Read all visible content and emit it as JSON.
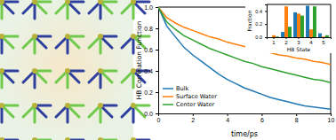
{
  "chart_data": [
    {
      "type": "line",
      "x_label": "time/ps",
      "y_label": "HB Correlation Function",
      "x": [
        0,
        0.5,
        1,
        1.5,
        2,
        2.5,
        3,
        3.5,
        4,
        4.5,
        5,
        5.5,
        6,
        6.5,
        7,
        7.5,
        8,
        8.5,
        9,
        9.5,
        10
      ],
      "series": [
        {
          "name": "Bulk",
          "color": "#1f77b4",
          "values": [
            1.0,
            0.82,
            0.72,
            0.62,
            0.55,
            0.49,
            0.43,
            0.37,
            0.32,
            0.28,
            0.24,
            0.21,
            0.18,
            0.15,
            0.13,
            0.11,
            0.09,
            0.07,
            0.06,
            0.05,
            0.04
          ]
        },
        {
          "name": "Surface Water",
          "color": "#ff7f0e",
          "values": [
            1.0,
            0.9,
            0.85,
            0.81,
            0.78,
            0.75,
            0.72,
            0.7,
            0.67,
            0.65,
            0.63,
            0.61,
            0.59,
            0.57,
            0.55,
            0.54,
            0.52,
            0.51,
            0.49,
            0.48,
            0.46
          ]
        },
        {
          "name": "Center Water",
          "color": "#2ca02c",
          "values": [
            1.0,
            0.86,
            0.79,
            0.73,
            0.69,
            0.65,
            0.61,
            0.58,
            0.55,
            0.52,
            0.49,
            0.47,
            0.44,
            0.42,
            0.4,
            0.38,
            0.36,
            0.34,
            0.32,
            0.31,
            0.29
          ]
        }
      ],
      "xlim": [
        0,
        10
      ],
      "xticks": [
        0,
        2,
        4,
        6,
        8,
        10
      ],
      "ylim": [
        0,
        1.0
      ],
      "yticks": [
        {
          "value": 0,
          "label": "0.0"
        },
        {
          "value": 0.2,
          "label": "0.2"
        },
        {
          "value": 0.4,
          "label": "0.4"
        },
        {
          "value": 0.6,
          "label": "0.6"
        },
        {
          "value": 0.8,
          "label": "0.8"
        },
        {
          "value": 1.0,
          "label": "1.0"
        }
      ],
      "legend": "lower left"
    },
    {
      "type": "bar",
      "x_label": "HB State",
      "y_label": "Fraction",
      "categories": [
        "1",
        "2",
        "3",
        "4",
        "5"
      ],
      "series": [
        {
          "color": "#1f77b4",
          "values": [
            0.0,
            0.08,
            0.38,
            0.48,
            0.06
          ]
        },
        {
          "color": "#ff7f0e",
          "values": [
            0.03,
            0.47,
            0.36,
            0.12,
            0.01
          ]
        },
        {
          "color": "#2ca02c",
          "values": [
            0.01,
            0.16,
            0.33,
            0.47,
            0.03
          ]
        }
      ],
      "ylim": [
        0,
        0.5
      ],
      "yticks": [
        {
          "value": 0,
          "label": "0.0"
        },
        {
          "value": 0.2,
          "label": "0.2"
        },
        {
          "value": 0.4,
          "label": "0.4"
        }
      ]
    }
  ]
}
